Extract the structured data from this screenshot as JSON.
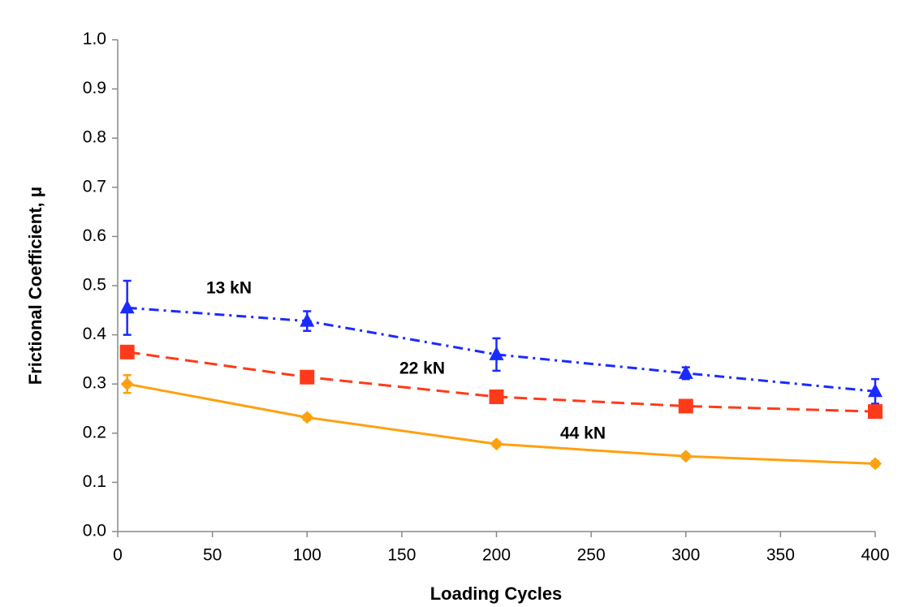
{
  "chart_data": {
    "type": "line",
    "x_label": "Loading Cycles",
    "y_label": "Frictional Coefficient, μ",
    "x": [
      5,
      100,
      200,
      300,
      400
    ],
    "series": [
      {
        "name": "13 kN",
        "color": "#1a2bff",
        "dash": "dash-dot",
        "marker": "triangle",
        "values": [
          0.455,
          0.428,
          0.36,
          0.322,
          0.285
        ],
        "errors": [
          0.055,
          0.02,
          0.033,
          0.012,
          0.025
        ]
      },
      {
        "name": "22 kN",
        "color": "#ff3a1a",
        "dash": "dash",
        "marker": "square",
        "values": [
          0.365,
          0.314,
          0.274,
          0.255,
          0.244
        ],
        "errors": [
          0.01,
          0.01,
          0.005,
          0.005,
          0.005
        ]
      },
      {
        "name": "44 kN",
        "color": "#ffa010",
        "dash": "solid",
        "marker": "diamond",
        "values": [
          0.3,
          0.232,
          0.178,
          0.153,
          0.138
        ],
        "errors": [
          0.018,
          0.005,
          0.005,
          0.005,
          0.005
        ]
      }
    ],
    "xlim": [
      0,
      400
    ],
    "xticks": [
      0,
      50,
      100,
      150,
      200,
      250,
      300,
      350,
      400
    ],
    "ylim": [
      0,
      1
    ],
    "yticks": [
      {
        "value": 0,
        "label": "0.0"
      },
      0.1,
      0.2,
      0.3,
      0.4,
      0.5,
      0.6,
      0.7,
      0.8,
      0.9,
      {
        "value": 1,
        "label": "1.0"
      }
    ]
  }
}
